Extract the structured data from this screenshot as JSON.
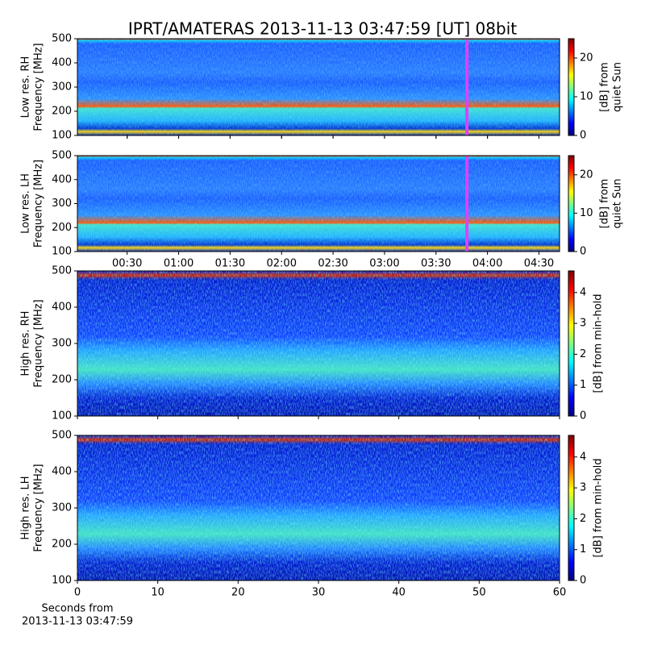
{
  "title": "IPRT/AMATERAS 2013-11-13 03:47:59 [UT]   08bit",
  "chart_data": [
    {
      "type": "heatmap",
      "colormap": "jet",
      "ylabel": [
        "Low res. RH",
        "Frequency [MHz]"
      ],
      "ylim": [
        100,
        500
      ],
      "yticks": [
        100,
        200,
        300,
        400,
        500
      ],
      "xlim": [
        1,
        282
      ],
      "xticks": [
        {
          "value": 30,
          "label": "00:30"
        },
        {
          "value": 60,
          "label": "01:00"
        },
        {
          "value": 90,
          "label": "01:30"
        },
        {
          "value": 120,
          "label": "02:00"
        },
        {
          "value": 150,
          "label": "02:30"
        },
        {
          "value": 180,
          "label": "03:00"
        },
        {
          "value": 210,
          "label": "03:30"
        },
        {
          "value": 240,
          "label": "04:00"
        },
        {
          "value": 270,
          "label": "04:30"
        }
      ],
      "show_xticklabels": false,
      "marker_x": 228,
      "marker_color": "#e040fb",
      "colorbar": {
        "clim": [
          0,
          25
        ],
        "ticks": [
          0,
          10,
          20
        ],
        "label": [
          "[dB] from",
          "quiet Sun"
        ]
      }
    },
    {
      "type": "heatmap",
      "colormap": "jet",
      "ylabel": [
        "Low res. LH",
        "Frequency [MHz]"
      ],
      "ylim": [
        100,
        500
      ],
      "yticks": [
        100,
        200,
        300,
        400,
        500
      ],
      "xlim": [
        1,
        282
      ],
      "xticks": [
        {
          "value": 30,
          "label": "00:30"
        },
        {
          "value": 60,
          "label": "01:00"
        },
        {
          "value": 90,
          "label": "01:30"
        },
        {
          "value": 120,
          "label": "02:00"
        },
        {
          "value": 150,
          "label": "02:30"
        },
        {
          "value": 180,
          "label": "03:00"
        },
        {
          "value": 210,
          "label": "03:30"
        },
        {
          "value": 240,
          "label": "04:00"
        },
        {
          "value": 270,
          "label": "04:30"
        }
      ],
      "show_xticklabels": true,
      "marker_x": 228,
      "marker_color": "#e040fb",
      "colorbar": {
        "clim": [
          0,
          25
        ],
        "ticks": [
          0,
          10,
          20
        ],
        "label": [
          "[dB] from",
          "quiet Sun"
        ]
      }
    },
    {
      "type": "heatmap",
      "colormap": "jet",
      "ylabel": [
        "High res. RH",
        "Frequency [MHz]"
      ],
      "ylim": [
        100,
        500
      ],
      "yticks": [
        100,
        200,
        300,
        400,
        500
      ],
      "xlim": [
        0,
        60
      ],
      "xticks": [
        0,
        10,
        20,
        30,
        40,
        50,
        60
      ],
      "show_xticklabels": false,
      "colorbar": {
        "clim": [
          0,
          4.7
        ],
        "ticks": [
          0,
          1,
          2,
          3,
          4
        ],
        "label": [
          "[dB] from min-hold"
        ]
      }
    },
    {
      "type": "heatmap",
      "colormap": "jet",
      "ylabel": [
        "High res. LH",
        "Frequency [MHz]"
      ],
      "ylim": [
        100,
        500
      ],
      "yticks": [
        100,
        200,
        300,
        400,
        500
      ],
      "xlim": [
        0,
        60
      ],
      "xticks": [
        0,
        10,
        20,
        30,
        40,
        50,
        60
      ],
      "show_xticklabels": true,
      "xlabel": [
        "Seconds from",
        "2013-11-13 03:47:59"
      ],
      "colorbar": {
        "clim": [
          0,
          4.7
        ],
        "ticks": [
          0,
          1,
          2,
          3,
          4
        ],
        "label": [
          "[dB] from min-hold"
        ]
      }
    }
  ]
}
